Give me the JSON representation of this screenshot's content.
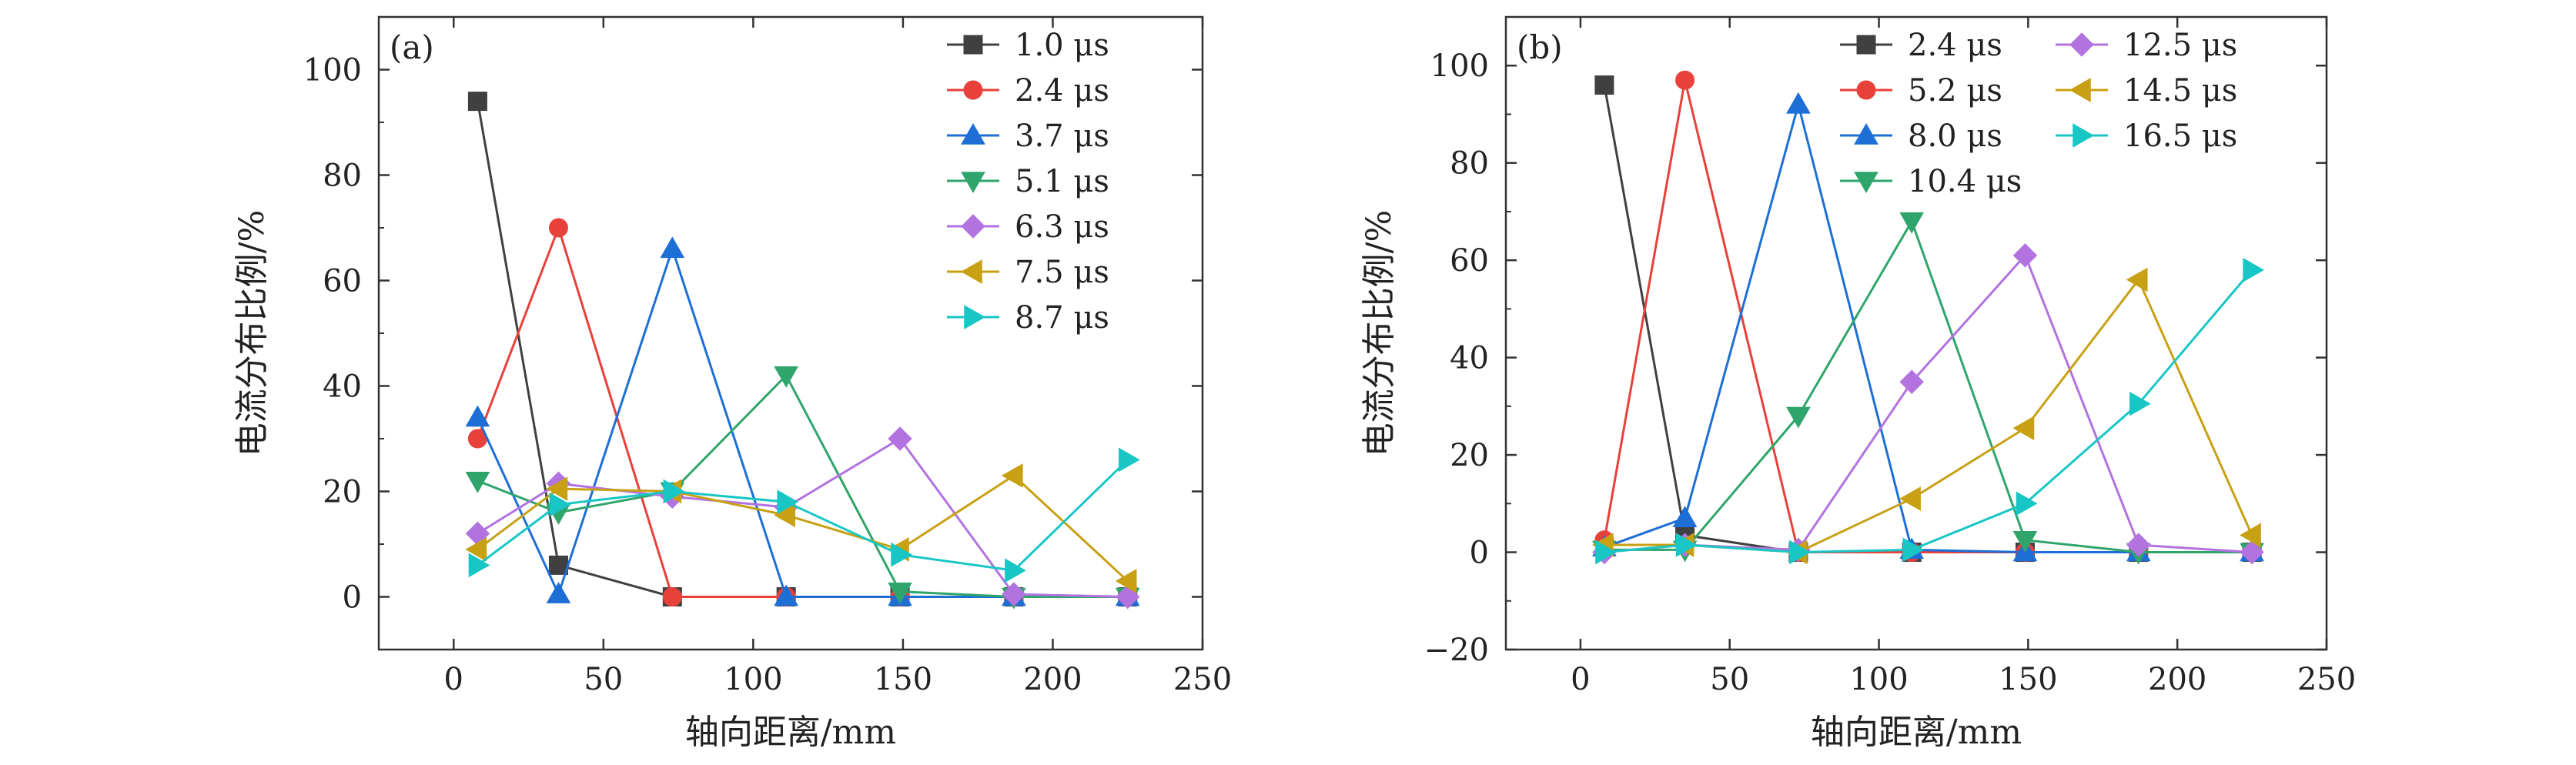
{
  "chart_data": [
    {
      "type": "line",
      "panel_label": "(a)",
      "xlabel": "轴向距离/mm",
      "ylabel": "电流分布比例/%",
      "xlim": [
        -25,
        250
      ],
      "ylim": [
        -10,
        110
      ],
      "xticks": [
        "0",
        "50",
        "100",
        "150",
        "200",
        "250"
      ],
      "yticks": [
        "0",
        "20",
        "40",
        "60",
        "80",
        "100"
      ],
      "x": [
        8,
        35,
        73,
        111,
        149,
        187,
        225
      ],
      "legend_position": "top-right",
      "legend_columns": 1,
      "series": [
        {
          "name": "1.0 μs",
          "color": "#404040",
          "marker": "square",
          "values": [
            94,
            6,
            0,
            0,
            0,
            0,
            0
          ]
        },
        {
          "name": "2.4 μs",
          "color": "#e8403a",
          "marker": "circle",
          "values": [
            30,
            70,
            0,
            0,
            0,
            0,
            0
          ]
        },
        {
          "name": "3.7 μs",
          "color": "#1d6fd6",
          "marker": "triangle-up",
          "values": [
            34,
            0.5,
            66,
            0,
            0,
            0,
            0
          ]
        },
        {
          "name": "5.1 μs",
          "color": "#2fa56b",
          "marker": "triangle-down",
          "values": [
            22,
            16,
            20,
            42,
            1,
            0,
            0
          ]
        },
        {
          "name": "6.3 μs",
          "color": "#b272e0",
          "marker": "diamond",
          "values": [
            12,
            21.5,
            19,
            17,
            30,
            0.5,
            0
          ]
        },
        {
          "name": "7.5 μs",
          "color": "#c8a013",
          "marker": "triangle-left",
          "values": [
            9,
            20.5,
            20,
            15.5,
            9,
            23,
            3
          ]
        },
        {
          "name": "8.7 μs",
          "color": "#19c6c6",
          "marker": "triangle-right",
          "values": [
            6,
            17.5,
            20,
            18,
            8,
            5,
            26
          ]
        }
      ]
    },
    {
      "type": "line",
      "panel_label": "(b)",
      "xlabel": "轴向距离/mm",
      "ylabel": "电流分布比例/%",
      "xlim": [
        -25,
        250
      ],
      "ylim": [
        -20,
        110
      ],
      "xticks": [
        "0",
        "50",
        "100",
        "150",
        "200",
        "250"
      ],
      "yticks": [
        "−20",
        "0",
        "20",
        "40",
        "60",
        "80",
        "100"
      ],
      "x": [
        8,
        35,
        73,
        111,
        149,
        187,
        225
      ],
      "legend_position": "top-right",
      "legend_columns": 2,
      "series": [
        {
          "name": "2.4 μs",
          "color": "#404040",
          "marker": "square",
          "values": [
            96,
            3.5,
            0,
            0,
            0,
            0,
            0
          ]
        },
        {
          "name": "5.2 μs",
          "color": "#e8403a",
          "marker": "circle",
          "values": [
            2.5,
            97,
            0,
            0,
            0,
            0,
            0
          ]
        },
        {
          "name": "8.0 μs",
          "color": "#1d6fd6",
          "marker": "triangle-up",
          "values": [
            1,
            7,
            92,
            0.5,
            0,
            0,
            0
          ]
        },
        {
          "name": "10.4 μs",
          "color": "#2fa56b",
          "marker": "triangle-down",
          "values": [
            0.5,
            0.5,
            28,
            68,
            2.5,
            0,
            0
          ]
        },
        {
          "name": "12.5 μs",
          "color": "#b272e0",
          "marker": "diamond",
          "values": [
            0,
            1.5,
            0.5,
            35,
            61,
            1.5,
            0
          ]
        },
        {
          "name": "14.5 μs",
          "color": "#c8a013",
          "marker": "triangle-left",
          "values": [
            1.5,
            1.5,
            0,
            11,
            25.5,
            56,
            3.5
          ]
        },
        {
          "name": "16.5 μs",
          "color": "#19c6c6",
          "marker": "triangle-right",
          "values": [
            0,
            1.5,
            0,
            0.5,
            10,
            30.5,
            58
          ]
        }
      ]
    }
  ]
}
